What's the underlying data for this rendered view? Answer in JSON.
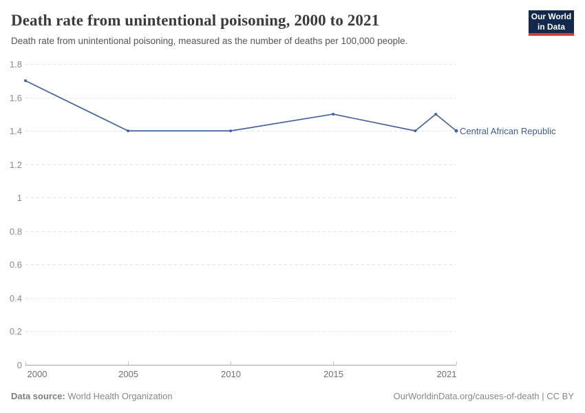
{
  "header": {
    "title": "Death rate from unintentional poisoning, 2000 to 2021",
    "subtitle": "Death rate from unintentional poisoning, measured as the number of deaths per 100,000 people.",
    "logo": {
      "line1": "Our World",
      "line2": "in Data",
      "bg_color": "#12294d",
      "accent_color": "#d73c32"
    }
  },
  "chart_data": {
    "type": "line",
    "title": "Death rate from unintentional poisoning, 2000 to 2021",
    "xlabel": "",
    "ylabel": "",
    "xlim": [
      2000,
      2021
    ],
    "ylim": [
      0,
      1.8
    ],
    "xticks": [
      2000,
      2005,
      2010,
      2015,
      2021
    ],
    "xtick_labels": [
      "2000",
      "2005",
      "2010",
      "2015",
      "2021"
    ],
    "yticks": [
      0,
      0.2,
      0.4,
      0.6,
      0.8,
      1,
      1.2,
      1.4,
      1.6,
      1.8
    ],
    "ytick_labels": [
      "0",
      "0.2",
      "0.4",
      "0.6",
      "0.8",
      "1",
      "1.2",
      "1.4",
      "1.6",
      "1.8"
    ],
    "grid": "horizontal-dashed",
    "legend_position": "end-of-line-label",
    "series": [
      {
        "name": "Central African Republic",
        "color": "#44639f",
        "x": [
          2000,
          2005,
          2010,
          2015,
          2019,
          2020,
          2021
        ],
        "values": [
          1.7,
          1.4,
          1.4,
          1.5,
          1.4,
          1.5,
          1.4
        ]
      }
    ]
  },
  "styles": {
    "gridline_color": "#e2e2e2",
    "axis_color": "#a5a5a5",
    "tick_color": "#c3c3c3",
    "ytick_text_color": "#8b8b8b",
    "xtick_text_color": "#6f6f6f",
    "entity_label_color": "#3d5b96"
  },
  "footer": {
    "source_label": "Data source:",
    "source_value": " World Health Organization",
    "right_text": "OurWorldinData.org/causes-of-death | CC BY"
  }
}
